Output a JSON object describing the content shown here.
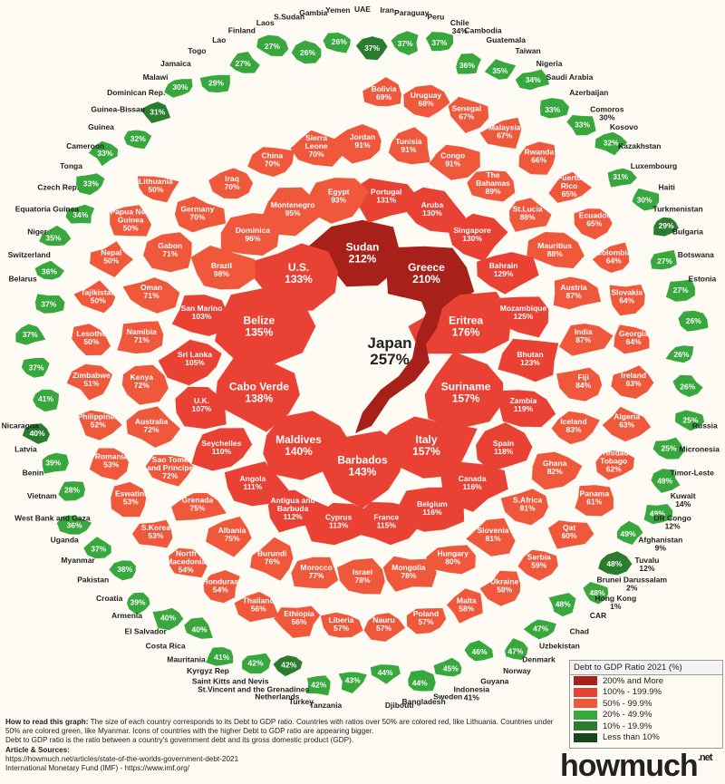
{
  "colors": {
    "c200": "#a8201a",
    "c100": "#e94235",
    "c50": "#f0583c",
    "c20": "#38a83e",
    "c10": "#2a7d2e",
    "c0": "#15481a",
    "bg": "#fdfbf3"
  },
  "map_type": "circular country debt treemap",
  "countries": [
    {
      "name": "Japan",
      "value": "257%",
      "tier": "c200",
      "size": "big"
    },
    {
      "name": "Sudan",
      "value": "212%",
      "tier": "c200",
      "size": "big"
    },
    {
      "name": "Greece",
      "value": "210%",
      "tier": "c200",
      "size": "big"
    },
    {
      "name": "Eritrea",
      "value": "176%",
      "tier": "c100",
      "size": "big"
    },
    {
      "name": "Suriname",
      "value": "157%",
      "tier": "c100",
      "size": "big"
    },
    {
      "name": "Italy",
      "value": "157%",
      "tier": "c100",
      "size": "big"
    },
    {
      "name": "Barbados",
      "value": "143%",
      "tier": "c100",
      "size": "mid"
    },
    {
      "name": "Maldives",
      "value": "140%",
      "tier": "c100",
      "size": "mid"
    },
    {
      "name": "Cabo Verde",
      "value": "138%",
      "tier": "c100",
      "size": "mid"
    },
    {
      "name": "Belize",
      "value": "135%",
      "tier": "c100",
      "size": "mid"
    },
    {
      "name": "U.S.",
      "value": "133%",
      "tier": "c100",
      "size": "mid"
    },
    {
      "name": "Portugal",
      "value": "131%",
      "tier": "c100",
      "size": "mid"
    },
    {
      "name": "Aruba",
      "value": "130%",
      "tier": "c100",
      "size": "mid"
    },
    {
      "name": "Singapore",
      "value": "130%",
      "tier": "c100",
      "size": "mid"
    },
    {
      "name": "Bahrain",
      "value": "129%",
      "tier": "c100",
      "size": "mid"
    },
    {
      "name": "Mozambique",
      "value": "125%",
      "tier": "c100",
      "size": "mid"
    },
    {
      "name": "Bhutan",
      "value": "123%",
      "tier": "c100",
      "size": "mid"
    },
    {
      "name": "Zambia",
      "value": "119%",
      "tier": "c100",
      "size": "mid"
    },
    {
      "name": "Spain",
      "value": "118%",
      "tier": "c100",
      "size": "mid"
    },
    {
      "name": "Canada",
      "value": "116%",
      "tier": "c100",
      "size": "mid"
    },
    {
      "name": "Belgium",
      "value": "116%",
      "tier": "c100",
      "size": "mid"
    },
    {
      "name": "France",
      "value": "115%",
      "tier": "c100",
      "size": "mid"
    },
    {
      "name": "Cyprus",
      "value": "113%",
      "tier": "c100",
      "size": "mid"
    },
    {
      "name": "Antigua and Barbuda",
      "value": "112%",
      "tier": "c100",
      "size": "sm"
    },
    {
      "name": "Angola",
      "value": "111%",
      "tier": "c100",
      "size": "mid"
    },
    {
      "name": "Seychelles",
      "value": "110%",
      "tier": "c100",
      "size": "mid"
    },
    {
      "name": "U.K.",
      "value": "107%",
      "tier": "c100",
      "size": "mid"
    },
    {
      "name": "Sri Lanka",
      "value": "105%",
      "tier": "c100",
      "size": "mid"
    },
    {
      "name": "San Marino",
      "value": "103%",
      "tier": "c100",
      "size": "mid"
    },
    {
      "name": "Brazil",
      "value": "98%",
      "tier": "c50",
      "size": "sm"
    },
    {
      "name": "Dominica",
      "value": "96%",
      "tier": "c50",
      "size": "sm"
    },
    {
      "name": "Montenegro",
      "value": "95%",
      "tier": "c50",
      "size": "sm"
    },
    {
      "name": "Egypt",
      "value": "93%",
      "tier": "c50",
      "size": "sm"
    },
    {
      "name": "Jordan",
      "value": "91%",
      "tier": "c50",
      "size": "sm"
    },
    {
      "name": "Tunisia",
      "value": "91%",
      "tier": "c50",
      "size": "sm"
    },
    {
      "name": "Congo",
      "value": "91%",
      "tier": "c50",
      "size": "sm"
    },
    {
      "name": "The Bahamas",
      "value": "89%",
      "tier": "c50",
      "size": "sm"
    },
    {
      "name": "St.Lucia",
      "value": "88%",
      "tier": "c50",
      "size": "sm"
    },
    {
      "name": "Mauritius",
      "value": "88%",
      "tier": "c50",
      "size": "sm"
    },
    {
      "name": "Austria",
      "value": "87%",
      "tier": "c50",
      "size": "sm"
    },
    {
      "name": "India",
      "value": "87%",
      "tier": "c50",
      "size": "sm"
    },
    {
      "name": "Fiji",
      "value": "84%",
      "tier": "c50",
      "size": "sm"
    },
    {
      "name": "Iceland",
      "value": "83%",
      "tier": "c50",
      "size": "sm"
    },
    {
      "name": "Ghana",
      "value": "82%",
      "tier": "c50",
      "size": "sm"
    },
    {
      "name": "S.Africa",
      "value": "81%",
      "tier": "c50",
      "size": "sm"
    },
    {
      "name": "Slovenia",
      "value": "81%",
      "tier": "c50",
      "size": "sm"
    },
    {
      "name": "Hungary",
      "value": "80%",
      "tier": "c50",
      "size": "sm"
    },
    {
      "name": "Mongolia",
      "value": "78%",
      "tier": "c50",
      "size": "sm"
    },
    {
      "name": "Israel",
      "value": "78%",
      "tier": "c50",
      "size": "sm"
    },
    {
      "name": "Morocco",
      "value": "77%",
      "tier": "c50",
      "size": "sm"
    },
    {
      "name": "Burundi",
      "value": "76%",
      "tier": "c50",
      "size": "sm"
    },
    {
      "name": "Albania",
      "value": "75%",
      "tier": "c50",
      "size": "sm"
    },
    {
      "name": "Grenada",
      "value": "75%",
      "tier": "c50",
      "size": "sm"
    },
    {
      "name": "Sao Tome and Principe",
      "value": "72%",
      "tier": "c50",
      "size": "sm"
    },
    {
      "name": "Australia",
      "value": "72%",
      "tier": "c50",
      "size": "sm"
    },
    {
      "name": "Kenya",
      "value": "72%",
      "tier": "c50",
      "size": "sm"
    },
    {
      "name": "Namibia",
      "value": "71%",
      "tier": "c50",
      "size": "sm"
    },
    {
      "name": "Oman",
      "value": "71%",
      "tier": "c50",
      "size": "sm"
    },
    {
      "name": "Gabon",
      "value": "71%",
      "tier": "c50",
      "size": "sm"
    },
    {
      "name": "Germany",
      "value": "70%",
      "tier": "c50",
      "size": "sm"
    },
    {
      "name": "Iraq",
      "value": "70%",
      "tier": "c50",
      "size": "sm"
    },
    {
      "name": "China",
      "value": "70%",
      "tier": "c50",
      "size": "sm"
    },
    {
      "name": "Sierra Leone",
      "value": "70%",
      "tier": "c50",
      "size": "sm"
    },
    {
      "name": "Bolivia",
      "value": "69%",
      "tier": "c50",
      "size": "sm"
    },
    {
      "name": "Uruguay",
      "value": "68%",
      "tier": "c50",
      "size": "sm"
    },
    {
      "name": "Senegal",
      "value": "67%",
      "tier": "c50",
      "size": "sm"
    },
    {
      "name": "Malaysia",
      "value": "67%",
      "tier": "c50",
      "size": "sm"
    },
    {
      "name": "Rwanda",
      "value": "66%",
      "tier": "c50",
      "size": "sm"
    },
    {
      "name": "Puerto Rico",
      "value": "65%",
      "tier": "c50",
      "size": "sm"
    },
    {
      "name": "Ecuador",
      "value": "65%",
      "tier": "c50",
      "size": "sm"
    },
    {
      "name": "Colombia",
      "value": "64%",
      "tier": "c50",
      "size": "sm"
    },
    {
      "name": "Slovakia",
      "value": "64%",
      "tier": "c50",
      "size": "sm"
    },
    {
      "name": "Georgia",
      "value": "64%",
      "tier": "c50",
      "size": "sm"
    },
    {
      "name": "Ireland",
      "value": "63%",
      "tier": "c50",
      "size": "sm"
    },
    {
      "name": "Algeria",
      "value": "63%",
      "tier": "c50",
      "size": "sm"
    },
    {
      "name": "Trinidad Tobago",
      "value": "62%",
      "tier": "c50",
      "size": "sm"
    },
    {
      "name": "Panama",
      "value": "61%",
      "tier": "c50",
      "size": "sm"
    },
    {
      "name": "Qat",
      "value": "60%",
      "tier": "c50",
      "size": "sm"
    },
    {
      "name": "Serbia",
      "value": "59%",
      "tier": "c50",
      "size": "sm"
    },
    {
      "name": "Ukraine",
      "value": "58%",
      "tier": "c50",
      "size": "sm"
    },
    {
      "name": "Malta",
      "value": "58%",
      "tier": "c50",
      "size": "sm"
    },
    {
      "name": "Poland",
      "value": "57%",
      "tier": "c50",
      "size": "sm"
    },
    {
      "name": "Nauru",
      "value": "57%",
      "tier": "c50",
      "size": "sm"
    },
    {
      "name": "Liberia",
      "value": "57%",
      "tier": "c50",
      "size": "sm"
    },
    {
      "name": "Ethiopia",
      "value": "56%",
      "tier": "c50",
      "size": "sm"
    },
    {
      "name": "Thailand",
      "value": "56%",
      "tier": "c50",
      "size": "sm"
    },
    {
      "name": "Honduras",
      "value": "54%",
      "tier": "c50",
      "size": "sm"
    },
    {
      "name": "North Macedonia",
      "value": "54%",
      "tier": "c50",
      "size": "sm"
    },
    {
      "name": "S.Korea",
      "value": "53%",
      "tier": "c50",
      "size": "sm"
    },
    {
      "name": "Eswatini",
      "value": "53%",
      "tier": "c50",
      "size": "sm"
    },
    {
      "name": "Romania",
      "value": "53%",
      "tier": "c50",
      "size": "sm"
    },
    {
      "name": "Philippines",
      "value": "52%",
      "tier": "c50",
      "size": "sm"
    },
    {
      "name": "Zimbabwe",
      "value": "51%",
      "tier": "c50",
      "size": "sm"
    },
    {
      "name": "Lesotho",
      "value": "50%",
      "tier": "c50",
      "size": "sm"
    },
    {
      "name": "Tajikistan",
      "value": "50%",
      "tier": "c50",
      "size": "sm"
    },
    {
      "name": "Nepal",
      "value": "50%",
      "tier": "c50",
      "size": "sm"
    },
    {
      "name": "Papua New Guinea",
      "value": "50%",
      "tier": "c50",
      "size": "sm"
    },
    {
      "name": "Lithuania",
      "value": "50%",
      "tier": "c50",
      "size": "sm"
    }
  ],
  "green_values": [
    "37%",
    "37%",
    "37%",
    "36%",
    "35%",
    "34%",
    "33%",
    "33%",
    "32%",
    "31%",
    "30%",
    "29%",
    "27%",
    "27%",
    "26%",
    "26%",
    "26%",
    "25%",
    "25%",
    "49%",
    "49%",
    "49%",
    "48%",
    "48%",
    "48%",
    "47%",
    "47%",
    "46%",
    "45%",
    "44%",
    "44%",
    "43%",
    "42%",
    "42%",
    "42%",
    "41%",
    "40%",
    "40%",
    "39%",
    "38%",
    "37%",
    "36%",
    "28%",
    "39%",
    "40%",
    "41%"
  ],
  "outer_labels": [
    {
      "name": "UAE"
    },
    {
      "name": "Iran"
    },
    {
      "name": "Paraguay"
    },
    {
      "name": "Peru"
    },
    {
      "name": "Chile",
      "value": "34%"
    },
    {
      "name": "Cambodia"
    },
    {
      "name": "Guatemala"
    },
    {
      "name": "Taiwan"
    },
    {
      "name": "Nigeria"
    },
    {
      "name": "Saudi Arabia"
    },
    {
      "name": "Azerbaijan"
    },
    {
      "name": "Comoros",
      "value": "30%"
    },
    {
      "name": "Kosovo"
    },
    {
      "name": "Kazakhstan"
    },
    {
      "name": "Luxembourg"
    },
    {
      "name": "Haiti"
    },
    {
      "name": "Turkmenistan"
    },
    {
      "name": "Bulgaria"
    },
    {
      "name": "Botswana"
    },
    {
      "name": "Estonia"
    },
    {
      "name": "Marshall Is.",
      "value": "23%"
    },
    {
      "name": "Samoa"
    },
    {
      "name": "Vanuatu",
      "value": "49%"
    },
    {
      "name": "Solomon Is.",
      "value": "22%"
    },
    {
      "name": "Kiribati",
      "value": "21%"
    },
    {
      "name": "Russia"
    },
    {
      "name": "Micronesia"
    },
    {
      "name": "Timor-Leste"
    },
    {
      "name": "Kuwait",
      "value": "14%"
    },
    {
      "name": "DR Congo",
      "value": "12%"
    },
    {
      "name": "Afghanistan",
      "value": "9%"
    },
    {
      "name": "Tuvalu",
      "value": "12%"
    },
    {
      "name": "Brunei Darussalam",
      "value": "2%"
    },
    {
      "name": "Hong Kong",
      "value": "1%"
    },
    {
      "name": "CAR"
    },
    {
      "name": "Chad"
    },
    {
      "name": "Uzbekistan"
    },
    {
      "name": "Denmark"
    },
    {
      "name": "Norway"
    },
    {
      "name": "Guyana"
    },
    {
      "name": "Indonesia",
      "value": "41%"
    },
    {
      "name": "Sweden"
    },
    {
      "name": "Bangladesh"
    },
    {
      "name": "Djibouti"
    },
    {
      "name": "Moldova"
    },
    {
      "name": "Bosnia and Herz"
    },
    {
      "name": "Tanzania"
    },
    {
      "name": "Turkey"
    },
    {
      "name": "Netherlands"
    },
    {
      "name": "St.Vincent and the Grenadines"
    },
    {
      "name": "Saint Kitts and Nevis"
    },
    {
      "name": "Kyrgyz Rep"
    },
    {
      "name": "Mauritania"
    },
    {
      "name": "Costa Rica"
    },
    {
      "name": "El Salvador"
    },
    {
      "name": "Armenia"
    },
    {
      "name": "Croatia"
    },
    {
      "name": "Pakistan"
    },
    {
      "name": "Myanmar"
    },
    {
      "name": "Uganda"
    },
    {
      "name": "West Bank and Gaza"
    },
    {
      "name": "Vietnam"
    },
    {
      "name": "Benin"
    },
    {
      "name": "Latvia"
    },
    {
      "name": "Nicaragua"
    },
    {
      "name": "Madagascar"
    },
    {
      "name": "Burkina Faso"
    },
    {
      "name": "Cote d'Ivoire"
    },
    {
      "name": "New Zealand"
    },
    {
      "name": "Mali"
    },
    {
      "name": "Belarus"
    },
    {
      "name": "Switzerland"
    },
    {
      "name": "Niger"
    },
    {
      "name": "Equatoria Guinea"
    },
    {
      "name": "Czech Rep."
    },
    {
      "name": "Tonga"
    },
    {
      "name": "Cameroon"
    },
    {
      "name": "Guinea"
    },
    {
      "name": "Guinea-Bissau"
    },
    {
      "name": "Dominican Rep."
    },
    {
      "name": "Malawi"
    },
    {
      "name": "Jamaica"
    },
    {
      "name": "Togo"
    },
    {
      "name": "Lao"
    },
    {
      "name": "Finland"
    },
    {
      "name": "Laos"
    },
    {
      "name": "S.Sudan"
    },
    {
      "name": "Gambia"
    },
    {
      "name": "Yemen"
    }
  ],
  "legend": {
    "title": "Debt to GDP Ratio 2021 (%)",
    "items": [
      {
        "label": "200% and More",
        "color": "#a8201a"
      },
      {
        "label": "100% - 199.9%",
        "color": "#e94235"
      },
      {
        "label": "50% - 99.9%",
        "color": "#f0583c"
      },
      {
        "label": "20% - 49.9%",
        "color": "#38a83e"
      },
      {
        "label": "10% - 19.9%",
        "color": "#2a7d2e"
      },
      {
        "label": "Less than 10%",
        "color": "#15481a"
      }
    ]
  },
  "notes": {
    "how_title": "How to read this graph:",
    "how_text": "The size of each country corresponds to its Debt to GDP ratio. Countries with ratios over 50% are colored red, like Lithuania. Countries under 50% are colored green, like Myanmar. Icons of countries with the higher Debt to GDP ratio are appearing bigger.",
    "def_text": "Debt to GDP ratio is the ratio between a country's government debt and its gross domestic product (GDP).",
    "sources_title": "Article & Sources:",
    "source1": "https://howmuch.net/articles/state-of-the-worlds-government-debt-2021",
    "source2": "International Monetary Fund (IMF) - https://www.imf.org/"
  },
  "logo": {
    "text": "howmuch",
    "suffix": ".net"
  }
}
